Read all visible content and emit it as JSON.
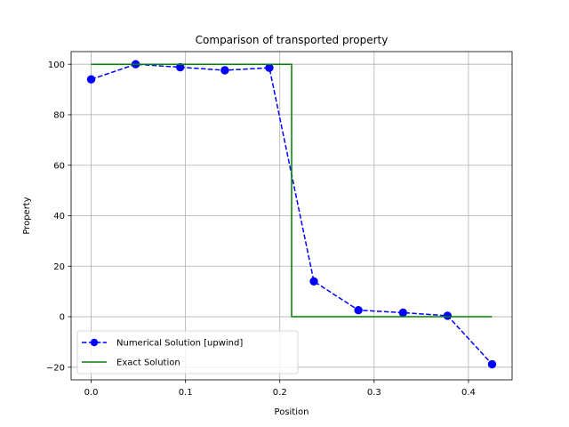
{
  "chart_data": {
    "type": "line",
    "title": "Comparison of transported property",
    "xlabel": "Position",
    "ylabel": "Property",
    "xlim": [
      -0.02125,
      0.44625
    ],
    "ylim": [
      -25,
      105
    ],
    "xticks": [
      0.0,
      0.1,
      0.2,
      0.3,
      0.4
    ],
    "xtick_labels": [
      "0.0",
      "0.1",
      "0.2",
      "0.3",
      "0.4"
    ],
    "yticks": [
      -20,
      0,
      20,
      40,
      60,
      80,
      100
    ],
    "ytick_labels": [
      "−20",
      "0",
      "20",
      "40",
      "60",
      "80",
      "100"
    ],
    "grid": true,
    "legend": {
      "placement": "lower-left"
    },
    "series": [
      {
        "name": "Numerical Solution [upwind]",
        "style": "dashed-line-circle-markers",
        "color": "#0000ff",
        "x": [
          0.0,
          0.0472,
          0.0944,
          0.1417,
          0.1889,
          0.2361,
          0.2833,
          0.3306,
          0.3778,
          0.425
        ],
        "y": [
          94,
          100,
          98.8,
          97.6,
          98.6,
          14,
          2.6,
          1.6,
          0.4,
          -18.8
        ]
      },
      {
        "name": "Exact Solution",
        "style": "solid-line",
        "color": "#008000",
        "x": [
          0.0,
          0.2125,
          0.2125,
          0.425
        ],
        "y": [
          100,
          100,
          0,
          0
        ]
      }
    ]
  }
}
